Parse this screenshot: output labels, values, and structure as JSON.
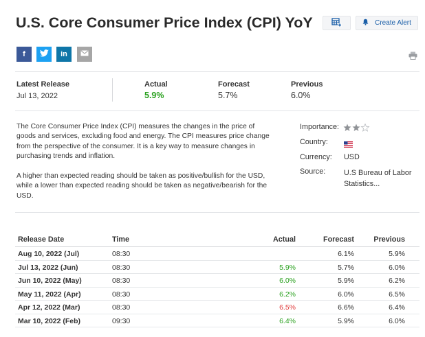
{
  "page": {
    "title": "U.S. Core Consumer Price Index (CPI) YoY",
    "create_alert_label": "Create Alert"
  },
  "icons": {
    "calendar_add": "calendar-add-icon",
    "bell": "bell-icon",
    "facebook": "facebook-icon",
    "twitter": "twitter-icon",
    "linkedin": "linkedin-icon",
    "email": "email-icon",
    "print": "print-icon"
  },
  "share": {
    "facebook": "f",
    "linkedin": "in"
  },
  "summary": {
    "latest_release_label": "Latest Release",
    "latest_release_date": "Jul 13, 2022",
    "actual_label": "Actual",
    "actual_value": "5.9%",
    "forecast_label": "Forecast",
    "forecast_value": "5.7%",
    "previous_label": "Previous",
    "previous_value": "6.0%"
  },
  "description": {
    "p1": "The Core Consumer Price Index (CPI) measures the changes in the price of goods and services, excluding food and energy. The CPI measures price change from the perspective of the consumer. It is a key way to measure changes in purchasing trends and inflation.",
    "p2": "A higher than expected reading should be taken as positive/bullish for the USD, while a lower than expected reading should be taken as negative/bearish for the USD."
  },
  "details": {
    "importance_label": "Importance:",
    "importance_stars": 2,
    "importance_max": 3,
    "country_label": "Country:",
    "currency_label": "Currency:",
    "currency_value": "USD",
    "source_label": "Source:",
    "source_line1": "U.S Bureau of Labor",
    "source_line2": "Statistics..."
  },
  "table": {
    "headers": {
      "release_date": "Release Date",
      "time": "Time",
      "actual": "Actual",
      "forecast": "Forecast",
      "previous": "Previous"
    },
    "rows": [
      {
        "date": "Aug 10, 2022 (Jul)",
        "time": "08:30",
        "actual": "",
        "forecast": "6.1%",
        "previous": "5.9%"
      },
      {
        "date": "Jul 13, 2022 (Jun)",
        "time": "08:30",
        "actual": "5.9%",
        "forecast": "5.7%",
        "previous": "6.0%"
      },
      {
        "date": "Jun 10, 2022 (May)",
        "time": "08:30",
        "actual": "6.0%",
        "forecast": "5.9%",
        "previous": "6.2%"
      },
      {
        "date": "May 11, 2022 (Apr)",
        "time": "08:30",
        "actual": "6.2%",
        "forecast": "6.0%",
        "previous": "6.5%"
      },
      {
        "date": "Apr 12, 2022 (Mar)",
        "time": "08:30",
        "actual": "6.5%",
        "forecast": "6.6%",
        "previous": "6.4%"
      },
      {
        "date": "Mar 10, 2022 (Feb)",
        "time": "09:30",
        "actual": "6.4%",
        "forecast": "5.9%",
        "previous": "6.0%"
      }
    ]
  },
  "colors": {
    "actual_green": "#28a01d",
    "actual_red": "#e03a3a",
    "link_blue": "#1b5fa8",
    "facebook": "#3b5998",
    "twitter": "#1da1f2",
    "linkedin": "#0e76a8",
    "email": "#a6a6a6"
  }
}
